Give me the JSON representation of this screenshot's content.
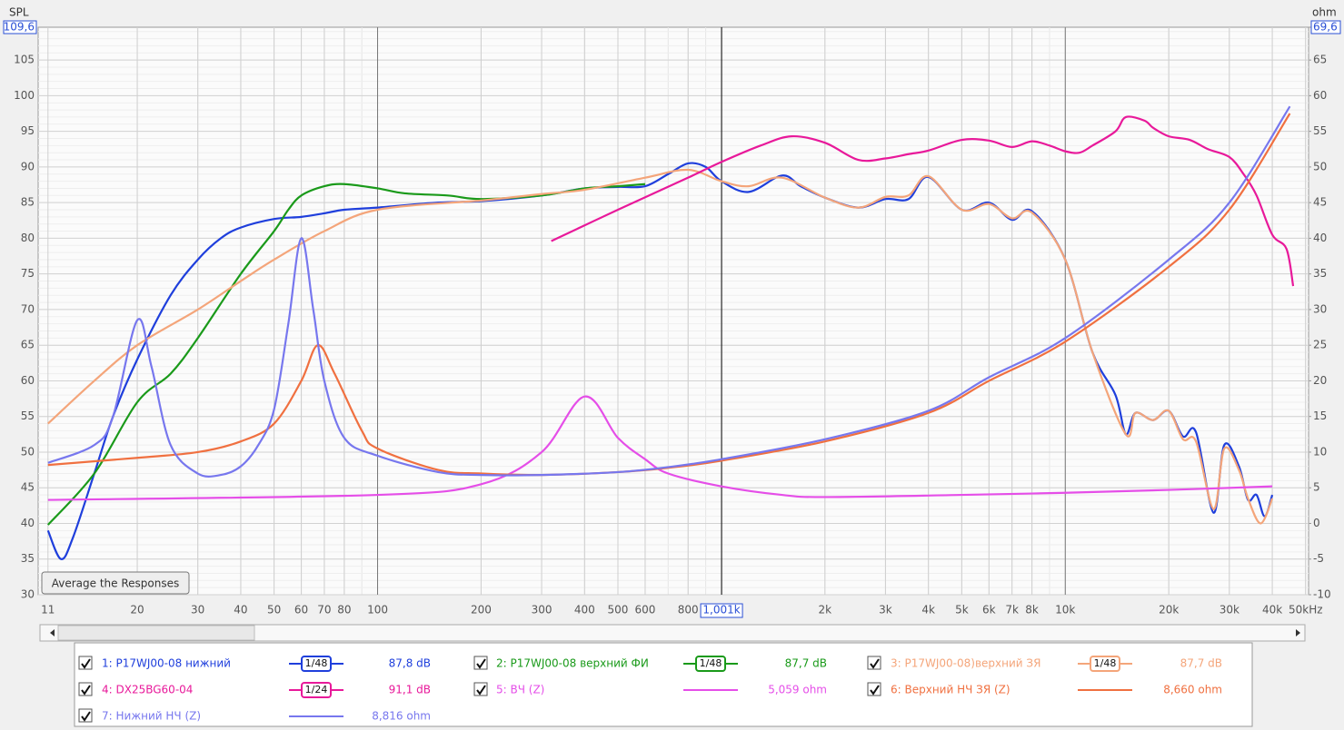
{
  "chart_data": {
    "type": "line",
    "y_label": "SPL",
    "y2_label": "ohm",
    "xscale": "log",
    "xlim": [
      10.3,
      51000
    ],
    "xticks": [
      {
        "value": 11,
        "label": "11"
      },
      {
        "value": 20,
        "label": "20"
      },
      {
        "value": 30,
        "label": "30"
      },
      {
        "value": 40,
        "label": "40"
      },
      {
        "value": 50,
        "label": "50"
      },
      {
        "value": 60,
        "label": "60"
      },
      {
        "value": 70,
        "label": "70"
      },
      {
        "value": 80,
        "label": "80"
      },
      {
        "value": 100,
        "label": "100"
      },
      {
        "value": 200,
        "label": "200"
      },
      {
        "value": 300,
        "label": "300"
      },
      {
        "value": 400,
        "label": "400"
      },
      {
        "value": 500,
        "label": "500"
      },
      {
        "value": 600,
        "label": "600"
      },
      {
        "value": 800,
        "label": "800"
      },
      {
        "value": 2000,
        "label": "2k"
      },
      {
        "value": 3000,
        "label": "3k"
      },
      {
        "value": 4000,
        "label": "4k"
      },
      {
        "value": 5000,
        "label": "5k"
      },
      {
        "value": 6000,
        "label": "6k"
      },
      {
        "value": 7000,
        "label": "7k"
      },
      {
        "value": 8000,
        "label": "8k"
      },
      {
        "value": 10000,
        "label": "10k"
      },
      {
        "value": 20000,
        "label": "20k"
      },
      {
        "value": 30000,
        "label": "30k"
      },
      {
        "value": 40000,
        "label": "40k"
      },
      {
        "value": 50000,
        "label": "50kHz"
      }
    ],
    "cursor": {
      "value": 1001,
      "label": "1,001k"
    },
    "ylim": [
      30,
      109.6
    ],
    "yticks": [
      30,
      35,
      40,
      45,
      50,
      55,
      60,
      65,
      70,
      75,
      80,
      85,
      90,
      95,
      100,
      105,
      {
        "value": 109.6,
        "label": "109,6"
      }
    ],
    "y2lim": [
      -10,
      69.6
    ],
    "y2ticks": [
      -10,
      -5,
      0,
      5,
      10,
      15,
      20,
      25,
      30,
      35,
      40,
      45,
      50,
      55,
      60,
      65,
      {
        "value": 69.6,
        "label": "69,6"
      }
    ],
    "grid": true,
    "series": [
      {
        "name": "1: P17WJ00-08 нижний",
        "color": "#1f3fdc",
        "smoothing": "1/48",
        "legend_value": 87.8,
        "legend_label": "87,8 dB",
        "x": [
          11,
          12,
          13,
          15,
          17,
          20,
          25,
          30,
          35,
          40,
          50,
          60,
          70,
          80,
          100,
          150,
          200,
          300,
          400,
          500,
          600,
          700,
          800,
          900,
          1000,
          1200,
          1500,
          1700,
          2000,
          2500,
          3000,
          3500,
          4000,
          5000,
          6000,
          7000,
          8000,
          10000,
          12000,
          14000,
          15000,
          16000,
          18000,
          20000,
          22000,
          24000,
          27000,
          29000,
          32000,
          34000,
          36000,
          38000,
          40000
        ],
        "values": [
          39,
          35,
          38,
          47,
          55,
          63,
          72,
          77,
          80,
          81.5,
          82.7,
          83,
          83.5,
          84,
          84.3,
          85,
          85.2,
          86,
          87,
          87.2,
          87.3,
          89,
          90.5,
          90,
          88,
          86.5,
          88.8,
          87.3,
          85.7,
          84.3,
          85.5,
          85.5,
          88.6,
          84,
          85,
          82.6,
          83.8,
          77,
          64,
          58,
          52.5,
          55.5,
          54.5,
          55.8,
          52.2,
          52.8,
          41.5,
          51,
          48,
          43.3,
          44,
          41,
          44
        ]
      },
      {
        "name": "2: P17WJ00-08 верхний ФИ",
        "color": "#1a9a1a",
        "smoothing": "1/48",
        "legend_value": 87.7,
        "legend_label": "87,7 dB",
        "x": [
          11,
          15,
          20,
          25,
          30,
          40,
          50,
          55,
          60,
          70,
          80,
          100,
          120,
          160,
          200,
          300,
          400,
          500,
          600
        ],
        "values": [
          39.8,
          47,
          57,
          61,
          66,
          75,
          81,
          84,
          86,
          87.3,
          87.6,
          87,
          86.3,
          86,
          85.5,
          86,
          87,
          87.3,
          87.6
        ]
      },
      {
        "name": "3: P17WJ00-08)верхний ЗЯ",
        "color": "#f4a57a",
        "smoothing": "1/48",
        "legend_value": 87.7,
        "legend_label": "87,7 dB",
        "x": [
          11,
          15,
          20,
          30,
          40,
          50,
          70,
          100,
          200,
          300,
          400,
          600,
          800,
          1000,
          1200,
          1500,
          2000,
          2500,
          3000,
          3500,
          4000,
          5000,
          6000,
          7000,
          8000,
          10000,
          12000,
          15000,
          16000,
          18000,
          20000,
          22000,
          24000,
          27000,
          29000,
          32000,
          34000,
          37000,
          40000
        ],
        "values": [
          54,
          60,
          65,
          70,
          74,
          77,
          81,
          84,
          85.3,
          86.2,
          86.8,
          88.5,
          89.6,
          88,
          87.3,
          88.5,
          85.7,
          84.3,
          85.8,
          86,
          88.7,
          84,
          84.8,
          82.8,
          83.6,
          77,
          64,
          52.5,
          55.5,
          54.5,
          55.8,
          51.8,
          51.5,
          42,
          50.5,
          47.5,
          43.5,
          40,
          43.5
        ]
      },
      {
        "name": "4: DX25BG60-04",
        "color": "#e8199a",
        "smoothing": "1/24",
        "legend_value": 91.1,
        "legend_label": "91,1 dB",
        "x": [
          320,
          500,
          800,
          1000,
          1300,
          1600,
          2000,
          2500,
          3000,
          3500,
          4000,
          5000,
          6000,
          7000,
          8000,
          9000,
          10000,
          11000,
          12000,
          14000,
          15000,
          17000,
          18000,
          20000,
          23000,
          26000,
          30000,
          33000,
          36000,
          40000,
          44000,
          46000
        ],
        "values": [
          79.6,
          84,
          88.5,
          90.7,
          93,
          94.3,
          93.4,
          91,
          91.2,
          91.8,
          92.3,
          93.8,
          93.7,
          92.8,
          93.6,
          93,
          92.2,
          92,
          93,
          95,
          97,
          96.5,
          95.5,
          94.3,
          93.8,
          92.5,
          91.4,
          89,
          86,
          80.5,
          78.5,
          73.3
        ]
      },
      {
        "name": "5: ВЧ (Z)",
        "color": "#e54ee8",
        "axis": "y2",
        "legend_value": 5.059,
        "legend_label": "5,059 ohm",
        "x": [
          11,
          100,
          200,
          300,
          400,
          500,
          600,
          700,
          1000,
          1500,
          2000,
          5000,
          10000,
          20000,
          40000
        ],
        "values": [
          3.3,
          4,
          5.5,
          10,
          17.8,
          12,
          9,
          7,
          5.2,
          4,
          3.7,
          4,
          4.3,
          4.7,
          5.2
        ]
      },
      {
        "name": "6: Верхний НЧ ЗЯ (Z)",
        "color": "#f07040",
        "axis": "y2",
        "legend_value": 8.66,
        "legend_label": "8,660 ohm",
        "x": [
          11,
          20,
          30,
          40,
          50,
          60,
          67,
          75,
          90,
          100,
          150,
          200,
          300,
          500,
          700,
          1000,
          2000,
          4000,
          6000,
          10000,
          20000,
          30000,
          45000
        ],
        "values": [
          8.2,
          9.2,
          10,
          11.5,
          14,
          20,
          25,
          21,
          13,
          10.5,
          7.5,
          7,
          6.8,
          7.2,
          7.8,
          8.8,
          11.5,
          15.5,
          20,
          25.5,
          36,
          44,
          57.5
        ]
      },
      {
        "name": "7: Нижний НЧ (Z)",
        "color": "#7777ee",
        "axis": "y2",
        "legend_value": 8.816,
        "legend_label": "8,816 ohm",
        "x": [
          11,
          15,
          17,
          20,
          22,
          25,
          30,
          35,
          40,
          45,
          50,
          55,
          60,
          65,
          70,
          80,
          100,
          150,
          200,
          300,
          500,
          700,
          1000,
          2000,
          4000,
          6000,
          10000,
          20000,
          30000,
          45000
        ],
        "values": [
          8.5,
          11,
          15,
          28.5,
          22,
          11,
          7,
          6.8,
          8,
          11,
          16,
          28,
          40,
          30,
          20,
          12,
          9.5,
          7.2,
          6.8,
          6.8,
          7.2,
          7.9,
          9,
          11.8,
          15.8,
          20.5,
          26,
          37,
          45,
          58.5
        ]
      }
    ]
  },
  "controls": {
    "average_button": "Average the Responses"
  }
}
